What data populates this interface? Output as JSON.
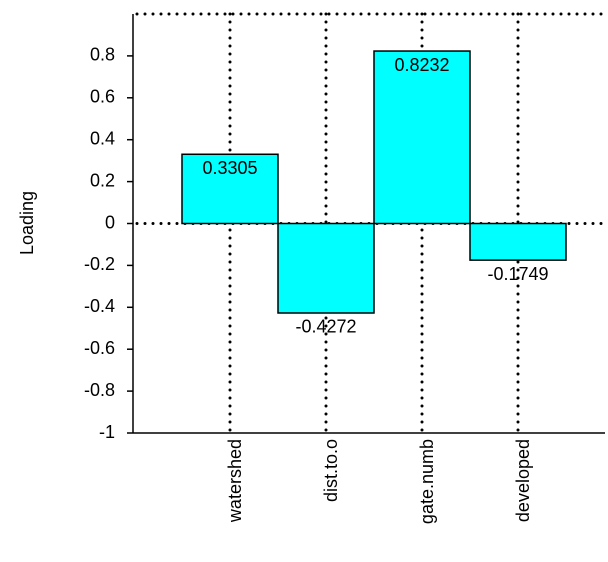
{
  "chart_data": {
    "type": "bar",
    "y_label": "Loading",
    "categories": [
      "watershed",
      "dist.to.o",
      "gate.numb",
      "developed"
    ],
    "values": [
      0.3305,
      -0.4272,
      0.8232,
      -0.1749
    ],
    "color": "#00ffff",
    "ylim": [
      -1,
      1
    ],
    "yticks": [
      -1,
      -0.8,
      -0.6,
      -0.4,
      -0.2,
      0,
      0.2,
      0.4,
      0.6,
      0.8
    ],
    "grid": "x",
    "zero_line": true
  }
}
